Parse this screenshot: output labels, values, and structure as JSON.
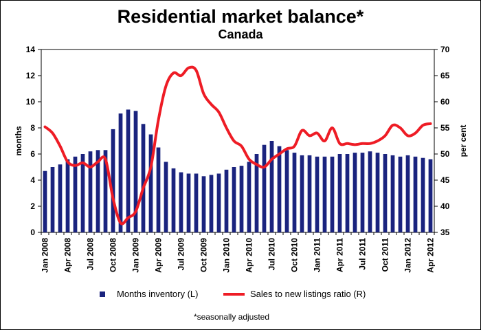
{
  "chart_data": {
    "type": "bar+line",
    "title": "Residential market balance*",
    "subtitle": "Canada",
    "footnote": "*seasonally adjusted",
    "ylabel_left": "months",
    "ylabel_right": "per cent",
    "ylim_left": [
      0,
      14
    ],
    "yticks_left": [
      "0",
      "2",
      "4",
      "6",
      "8",
      "10",
      "12",
      "14"
    ],
    "ylim_right": [
      35,
      70
    ],
    "yticks_right": [
      "35",
      "40",
      "45",
      "50",
      "55",
      "60",
      "65",
      "70"
    ],
    "x_tick_labels": [
      {
        "index": 0,
        "label": "Jan 2008"
      },
      {
        "index": 3,
        "label": "Apr 2008"
      },
      {
        "index": 6,
        "label": "Jul 2008"
      },
      {
        "index": 9,
        "label": "Oct 2008"
      },
      {
        "index": 12,
        "label": "Jan 2009"
      },
      {
        "index": 15,
        "label": "Apr 2009"
      },
      {
        "index": 18,
        "label": "Jul 2009"
      },
      {
        "index": 21,
        "label": "Oct 2009"
      },
      {
        "index": 24,
        "label": "Jan 2010"
      },
      {
        "index": 27,
        "label": "Apr 2010"
      },
      {
        "index": 30,
        "label": "Jul 2010"
      },
      {
        "index": 33,
        "label": "Oct 2010"
      },
      {
        "index": 36,
        "label": "Jan 2011"
      },
      {
        "index": 39,
        "label": "Apr 2011"
      },
      {
        "index": 42,
        "label": "Jul 2011"
      },
      {
        "index": 45,
        "label": "Oct 2011"
      },
      {
        "index": 48,
        "label": "Jan 2012"
      },
      {
        "index": 51,
        "label": "Apr 2012"
      }
    ],
    "series": [
      {
        "name": "Months inventory (L)",
        "type": "bar",
        "axis": "left",
        "color": "#1a237e",
        "values": [
          4.7,
          5.0,
          5.2,
          5.6,
          5.8,
          6.0,
          6.2,
          6.3,
          6.3,
          7.9,
          9.1,
          9.4,
          9.3,
          8.3,
          7.5,
          6.5,
          5.4,
          4.9,
          4.6,
          4.5,
          4.5,
          4.3,
          4.4,
          4.5,
          4.8,
          5.0,
          5.1,
          5.4,
          6.0,
          6.7,
          7.0,
          6.6,
          6.3,
          6.1,
          5.9,
          5.9,
          5.8,
          5.8,
          5.8,
          6.0,
          6.0,
          6.1,
          6.1,
          6.2,
          6.1,
          6.0,
          5.9,
          5.8,
          5.9,
          5.8,
          5.7,
          5.6
        ]
      },
      {
        "name": "Sales to new listings ratio (R)",
        "type": "line",
        "axis": "right",
        "color": "#ee1c25",
        "values": [
          55.2,
          54.0,
          51.5,
          48.5,
          47.8,
          48.3,
          47.5,
          48.5,
          49.0,
          41.5,
          36.8,
          37.8,
          39.0,
          43.5,
          47.5,
          56.5,
          63.0,
          65.5,
          65.0,
          66.5,
          66.0,
          61.5,
          59.5,
          58.0,
          55.0,
          52.5,
          51.5,
          49.0,
          48.0,
          47.5,
          49.0,
          50.0,
          51.0,
          51.5,
          54.5,
          53.5,
          54.0,
          52.5,
          55.0,
          52.0,
          52.0,
          51.8,
          52.0,
          52.0,
          52.5,
          53.5,
          55.5,
          55.0,
          53.5,
          54.0,
          55.5,
          55.8
        ]
      }
    ],
    "legend": [
      "Months inventory (L)",
      "Sales to new listings ratio (R)"
    ]
  }
}
